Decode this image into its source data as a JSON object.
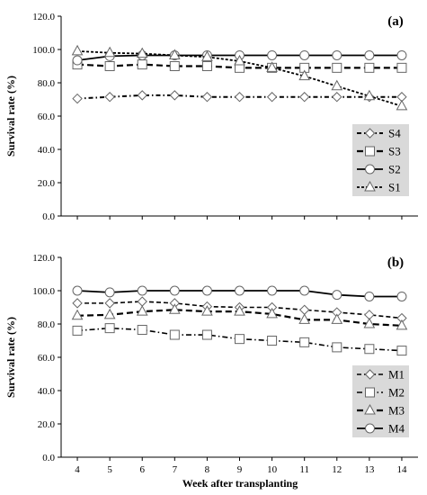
{
  "chart_data": [
    {
      "type": "line",
      "panel_label": "(a)",
      "ylabel": "Survival rate (%)",
      "xlabel": "",
      "ylim": [
        0,
        120
      ],
      "yticks": [
        "0.0",
        "20.0",
        "40.0",
        "60.0",
        "80.0",
        "100.0",
        "120.0"
      ],
      "x": [
        4,
        5,
        6,
        7,
        8,
        9,
        10,
        11,
        12,
        13,
        14
      ],
      "legend_position": "bottom-right",
      "series": [
        {
          "name": "S4",
          "marker": "diamond",
          "dash": "5,3,1.5,3",
          "width": 2,
          "values": [
            70.5,
            71.5,
            72.5,
            72.5,
            71.5,
            71.5,
            71.5,
            71.5,
            71.5,
            71.5,
            71.5
          ]
        },
        {
          "name": "S3",
          "marker": "square",
          "dash": "7,4",
          "width": 2.2,
          "values": [
            91,
            90,
            91,
            90,
            90,
            89,
            89,
            89,
            89,
            89,
            89
          ]
        },
        {
          "name": "S2",
          "marker": "circle",
          "dash": "",
          "width": 1.8,
          "values": [
            93.5,
            96,
            96.5,
            96.5,
            96.5,
            96.5,
            96.5,
            96.5,
            96.5,
            96.5,
            96.5
          ]
        },
        {
          "name": "S1",
          "marker": "triangle",
          "dash": "3,2",
          "width": 1.8,
          "values": [
            99,
            98,
            97.5,
            96.5,
            95.5,
            93,
            89,
            84,
            78,
            72,
            66
          ]
        }
      ]
    },
    {
      "type": "line",
      "panel_label": "(b)",
      "ylabel": "Survival rate (%)",
      "xlabel": "Week after transplanting",
      "ylim": [
        0,
        120
      ],
      "yticks": [
        "0.0",
        "20.0",
        "40.0",
        "60.0",
        "80.0",
        "100.0",
        "120.0"
      ],
      "x": [
        4,
        5,
        6,
        7,
        8,
        9,
        10,
        11,
        12,
        13,
        14
      ],
      "xticks": [
        "4",
        "5",
        "6",
        "7",
        "8",
        "9",
        "10",
        "11",
        "12",
        "13",
        "14"
      ],
      "legend_position": "bottom-right",
      "series": [
        {
          "name": "M1",
          "marker": "diamond",
          "dash": "5,3",
          "width": 1.6,
          "values": [
            92.5,
            92.5,
            93.5,
            92.5,
            90.5,
            90,
            90,
            88.5,
            87,
            85.5,
            83.5
          ]
        },
        {
          "name": "M2",
          "marker": "square",
          "dash": "6,3,1.5,3",
          "width": 1.6,
          "values": [
            76,
            77.5,
            76.5,
            73.5,
            73.5,
            71,
            70,
            69,
            66,
            65,
            64
          ]
        },
        {
          "name": "M3",
          "marker": "triangle",
          "dash": "7,4",
          "width": 2.2,
          "values": [
            85,
            85.5,
            87.5,
            88.5,
            87.5,
            87.5,
            86,
            82.5,
            82.5,
            80,
            79
          ]
        },
        {
          "name": "M4",
          "marker": "circle",
          "dash": "",
          "width": 1.8,
          "values": [
            100,
            99,
            100,
            100,
            100,
            100,
            100,
            100,
            97.5,
            96.5,
            96.5
          ]
        }
      ]
    }
  ]
}
